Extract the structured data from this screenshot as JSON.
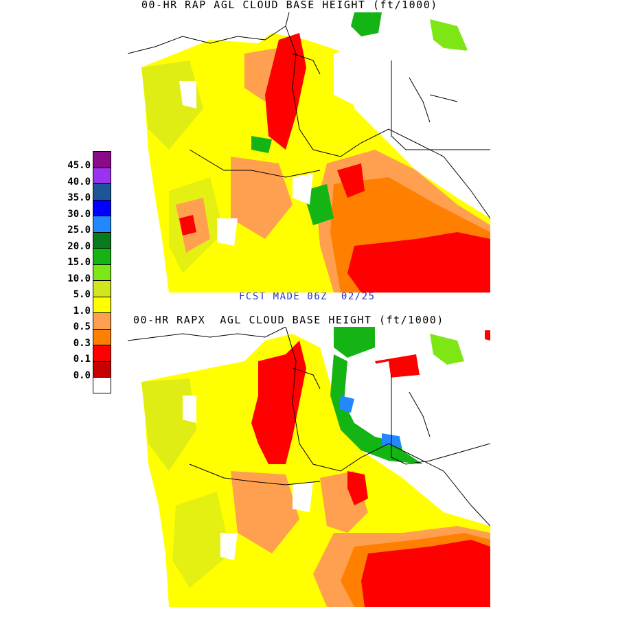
{
  "titles": {
    "top": "00-HR RAP AGL CLOUD BASE HEIGHT (ft/1000)",
    "bottom": "00-HR RAPX  AGL CLOUD BASE HEIGHT (ft/1000)"
  },
  "forecast_label": "FCST MADE 06Z  02/25",
  "legend": {
    "entries": [
      {
        "label": "45.0",
        "color": "#8a0a8a"
      },
      {
        "label": "40.0",
        "color": "#9933ee"
      },
      {
        "label": "35.0",
        "color": "#1e5596"
      },
      {
        "label": "30.0",
        "color": "#0000ff"
      },
      {
        "label": "25.0",
        "color": "#2288ff"
      },
      {
        "label": "20.0",
        "color": "#0a7a1e"
      },
      {
        "label": "15.0",
        "color": "#14b414"
      },
      {
        "label": "10.0",
        "color": "#7ee614"
      },
      {
        "label": "5.0",
        "color": "#d2e61e"
      },
      {
        "label": "1.0",
        "color": "#ffff00"
      },
      {
        "label": "0.5",
        "color": "#ffa050"
      },
      {
        "label": "0.3",
        "color": "#ff8000"
      },
      {
        "label": "0.1",
        "color": "#ff0000"
      },
      {
        "label": "0.0",
        "color": "#c80000"
      },
      {
        "label": "",
        "color": "#ffffff"
      }
    ]
  }
}
